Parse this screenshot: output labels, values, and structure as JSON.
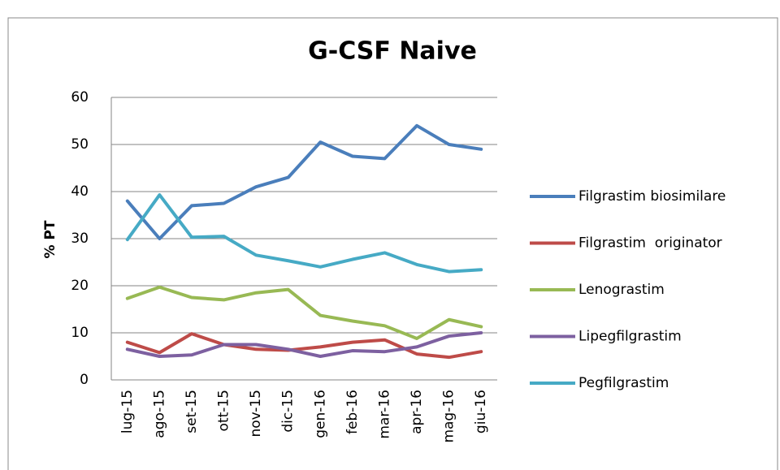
{
  "chart_data": {
    "type": "line",
    "title": "G-CSF Naive",
    "y_label": "% PT",
    "categories": [
      "lug-15",
      "ago-15",
      "set-15",
      "ott-15",
      "nov-15",
      "dic-15",
      "gen-16",
      "feb-16",
      "mar-16",
      "apr-16",
      "mag-16",
      "giu-16"
    ],
    "series": [
      {
        "name": "Filgrastim biosimilare",
        "color": "#4a7ebb",
        "values": [
          38,
          30,
          37,
          37.5,
          41,
          43,
          50.5,
          47.5,
          47,
          54,
          50,
          49
        ]
      },
      {
        "name": "Filgrastim  originator",
        "color": "#be4b48",
        "values": [
          8,
          5.8,
          9.8,
          7.5,
          6.5,
          6.3,
          7,
          8,
          8.5,
          5.5,
          4.8,
          6
        ]
      },
      {
        "name": "Lenograstim",
        "color": "#98b954",
        "values": [
          17.3,
          19.7,
          17.5,
          17,
          18.5,
          19.2,
          13.7,
          12.5,
          11.5,
          8.8,
          12.8,
          11.3
        ]
      },
      {
        "name": "Lipegfilgrastim",
        "color": "#7d60a0",
        "values": [
          6.5,
          5,
          5.3,
          7.5,
          7.5,
          6.5,
          5,
          6.2,
          6,
          7,
          9.3,
          10
        ]
      },
      {
        "name": "Pegfilgrastim",
        "color": "#46aac5",
        "values": [
          29.8,
          39.3,
          30.3,
          30.5,
          26.5,
          25.3,
          24,
          25.6,
          27,
          24.5,
          23,
          23.4
        ]
      }
    ],
    "ylim": [
      0,
      60
    ],
    "yticks": [
      0,
      10,
      20,
      30,
      40,
      50,
      60
    ],
    "grid": true,
    "legend": "right"
  }
}
